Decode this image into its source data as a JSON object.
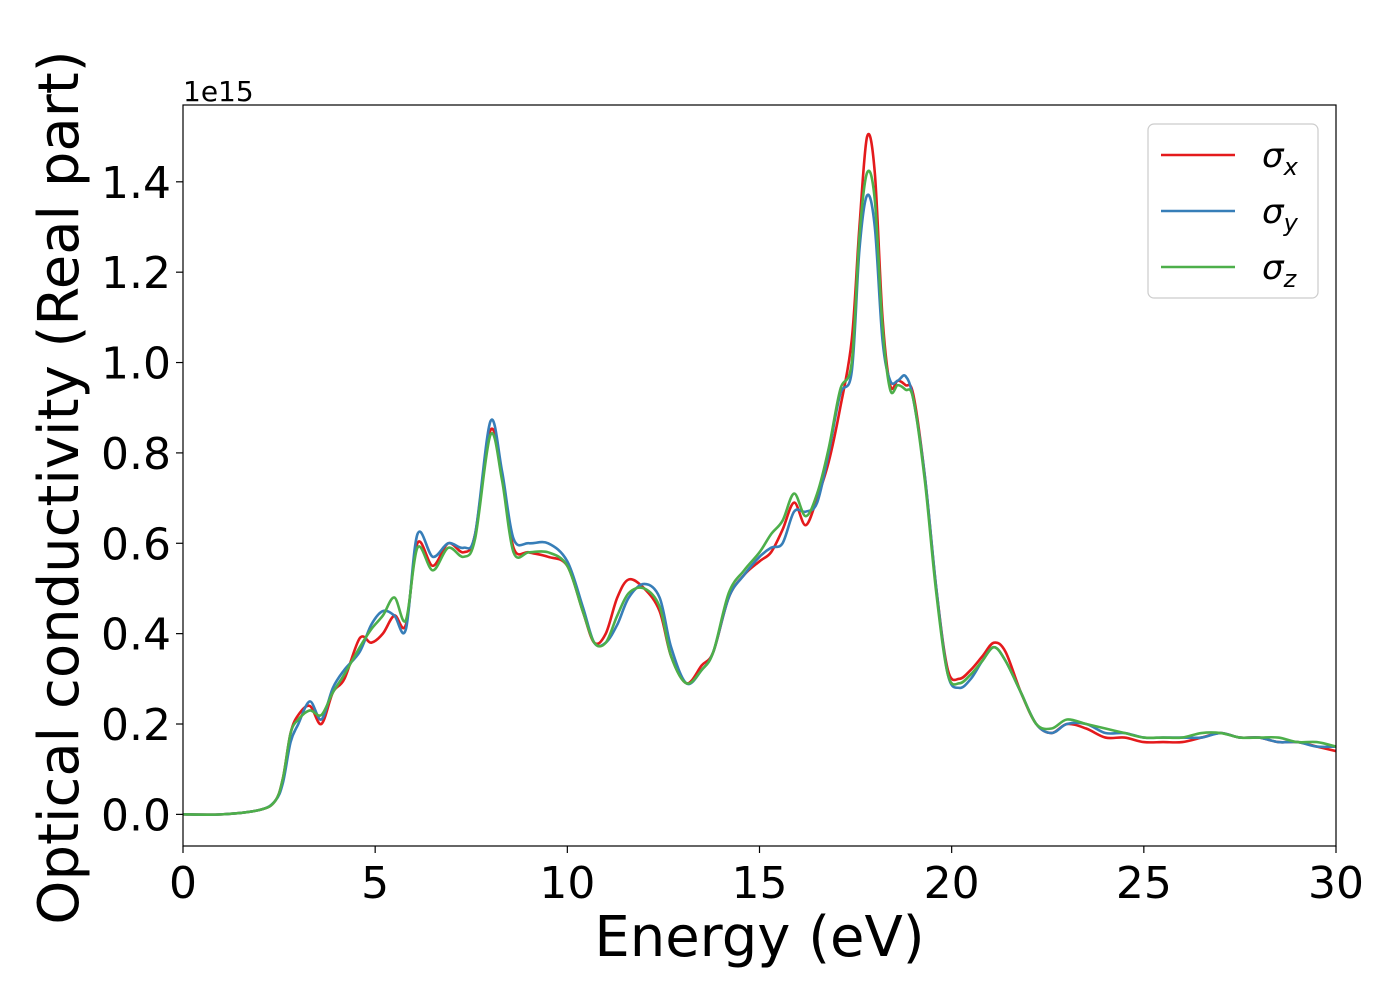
{
  "chart_data": {
    "type": "line",
    "xlabel": "Energy (eV)",
    "ylabel": "Optical conductivity (Real part)",
    "y_offset_label": "1e15",
    "xlim": [
      0,
      30
    ],
    "ylim": [
      -0.07,
      1.57
    ],
    "x_ticks": [
      0,
      5,
      10,
      15,
      20,
      25,
      30
    ],
    "y_ticks": [
      0.0,
      0.2,
      0.4,
      0.6,
      0.8,
      1.0,
      1.2,
      1.4
    ],
    "y_tick_labels": [
      "0.0",
      "0.2",
      "0.4",
      "0.6",
      "0.8",
      "1.0",
      "1.2",
      "1.4"
    ],
    "grid": false,
    "legend_position": "top-right",
    "series": [
      {
        "name": "σx",
        "symbol": "σ",
        "subscript": "x",
        "color": "#e41a1c",
        "x": [
          0,
          1,
          2,
          2.4,
          2.6,
          2.8,
          3,
          3.3,
          3.6,
          3.9,
          4.2,
          4.6,
          4.9,
          5.2,
          5.5,
          5.8,
          6.1,
          6.5,
          6.9,
          7.3,
          7.6,
          8,
          8.3,
          8.6,
          9,
          9.5,
          10,
          10.4,
          10.7,
          11,
          11.3,
          11.6,
          12,
          12.4,
          12.7,
          13.1,
          13.5,
          13.8,
          14.2,
          14.6,
          15,
          15.3,
          15.6,
          15.9,
          16.2,
          16.5,
          16.8,
          17.1,
          17.4,
          17.6,
          17.8,
          18,
          18.2,
          18.4,
          18.6,
          18.8,
          19,
          19.3,
          19.6,
          19.9,
          20.2,
          20.5,
          20.8,
          21.1,
          21.4,
          21.8,
          22.2,
          22.6,
          23,
          23.5,
          24,
          24.5,
          25,
          25.5,
          26,
          26.5,
          27,
          27.5,
          28,
          28.5,
          29,
          29.5,
          30
        ],
        "y": [
          0.0,
          0.0,
          0.01,
          0.03,
          0.08,
          0.18,
          0.22,
          0.24,
          0.2,
          0.27,
          0.3,
          0.39,
          0.38,
          0.4,
          0.44,
          0.42,
          0.6,
          0.55,
          0.6,
          0.58,
          0.62,
          0.85,
          0.75,
          0.59,
          0.58,
          0.57,
          0.55,
          0.45,
          0.38,
          0.4,
          0.48,
          0.52,
          0.5,
          0.45,
          0.35,
          0.29,
          0.33,
          0.36,
          0.48,
          0.53,
          0.56,
          0.58,
          0.63,
          0.69,
          0.64,
          0.7,
          0.78,
          0.9,
          1.05,
          1.3,
          1.5,
          1.42,
          1.1,
          0.95,
          0.96,
          0.95,
          0.93,
          0.75,
          0.5,
          0.32,
          0.3,
          0.32,
          0.35,
          0.38,
          0.36,
          0.27,
          0.2,
          0.18,
          0.2,
          0.19,
          0.17,
          0.17,
          0.16,
          0.16,
          0.16,
          0.17,
          0.18,
          0.17,
          0.17,
          0.16,
          0.16,
          0.15,
          0.14
        ]
      },
      {
        "name": "σy",
        "symbol": "σ",
        "subscript": "y",
        "color": "#377eb8",
        "x": [
          0,
          1,
          2,
          2.4,
          2.6,
          2.8,
          3,
          3.3,
          3.6,
          3.9,
          4.2,
          4.6,
          4.9,
          5.2,
          5.5,
          5.8,
          6.1,
          6.5,
          6.9,
          7.3,
          7.6,
          8,
          8.3,
          8.6,
          9,
          9.5,
          10,
          10.4,
          10.7,
          11,
          11.3,
          11.6,
          12,
          12.4,
          12.7,
          13.1,
          13.5,
          13.8,
          14.2,
          14.6,
          15,
          15.3,
          15.6,
          15.9,
          16.2,
          16.5,
          16.8,
          17.1,
          17.4,
          17.6,
          17.8,
          18,
          18.2,
          18.4,
          18.6,
          18.8,
          19,
          19.3,
          19.6,
          19.9,
          20.2,
          20.5,
          20.8,
          21.1,
          21.4,
          21.8,
          22.2,
          22.6,
          23,
          23.5,
          24,
          24.5,
          25,
          25.5,
          26,
          26.5,
          27,
          27.5,
          28,
          28.5,
          29,
          29.5,
          30
        ],
        "y": [
          0.0,
          0.0,
          0.01,
          0.03,
          0.07,
          0.16,
          0.2,
          0.25,
          0.21,
          0.28,
          0.32,
          0.36,
          0.42,
          0.45,
          0.44,
          0.41,
          0.62,
          0.57,
          0.6,
          0.59,
          0.62,
          0.87,
          0.76,
          0.61,
          0.6,
          0.6,
          0.56,
          0.46,
          0.38,
          0.38,
          0.42,
          0.48,
          0.51,
          0.48,
          0.37,
          0.29,
          0.32,
          0.36,
          0.48,
          0.53,
          0.57,
          0.59,
          0.6,
          0.67,
          0.67,
          0.69,
          0.8,
          0.93,
          0.98,
          1.25,
          1.37,
          1.3,
          1.05,
          0.96,
          0.96,
          0.97,
          0.92,
          0.75,
          0.5,
          0.31,
          0.28,
          0.3,
          0.34,
          0.37,
          0.34,
          0.27,
          0.2,
          0.18,
          0.2,
          0.2,
          0.18,
          0.18,
          0.17,
          0.17,
          0.17,
          0.17,
          0.18,
          0.17,
          0.17,
          0.16,
          0.16,
          0.15,
          0.15
        ]
      },
      {
        "name": "σz",
        "symbol": "σ",
        "subscript": "z",
        "color": "#4daf4a",
        "x": [
          0,
          1,
          2,
          2.4,
          2.6,
          2.8,
          3,
          3.3,
          3.6,
          3.9,
          4.2,
          4.6,
          4.9,
          5.2,
          5.5,
          5.8,
          6.1,
          6.5,
          6.9,
          7.3,
          7.6,
          8,
          8.3,
          8.6,
          9,
          9.5,
          10,
          10.4,
          10.7,
          11,
          11.3,
          11.6,
          12,
          12.4,
          12.7,
          13.1,
          13.5,
          13.8,
          14.2,
          14.6,
          15,
          15.3,
          15.6,
          15.9,
          16.2,
          16.5,
          16.8,
          17.1,
          17.4,
          17.6,
          17.8,
          18,
          18.2,
          18.4,
          18.6,
          18.8,
          19,
          19.3,
          19.6,
          19.9,
          20.2,
          20.5,
          20.8,
          21.1,
          21.4,
          21.8,
          22.2,
          22.6,
          23,
          23.5,
          24,
          24.5,
          25,
          25.5,
          26,
          26.5,
          27,
          27.5,
          28,
          28.5,
          29,
          29.5,
          30
        ],
        "y": [
          0.0,
          0.0,
          0.01,
          0.03,
          0.08,
          0.18,
          0.21,
          0.23,
          0.22,
          0.27,
          0.31,
          0.37,
          0.41,
          0.44,
          0.48,
          0.43,
          0.59,
          0.54,
          0.59,
          0.57,
          0.61,
          0.84,
          0.74,
          0.58,
          0.58,
          0.58,
          0.55,
          0.45,
          0.38,
          0.38,
          0.44,
          0.49,
          0.5,
          0.46,
          0.35,
          0.29,
          0.32,
          0.36,
          0.49,
          0.54,
          0.58,
          0.62,
          0.65,
          0.71,
          0.66,
          0.71,
          0.81,
          0.94,
          1.0,
          1.28,
          1.42,
          1.36,
          1.08,
          0.94,
          0.95,
          0.94,
          0.92,
          0.74,
          0.49,
          0.31,
          0.29,
          0.31,
          0.34,
          0.37,
          0.34,
          0.27,
          0.2,
          0.19,
          0.21,
          0.2,
          0.19,
          0.18,
          0.17,
          0.17,
          0.17,
          0.18,
          0.18,
          0.17,
          0.17,
          0.17,
          0.16,
          0.16,
          0.15
        ]
      }
    ]
  }
}
